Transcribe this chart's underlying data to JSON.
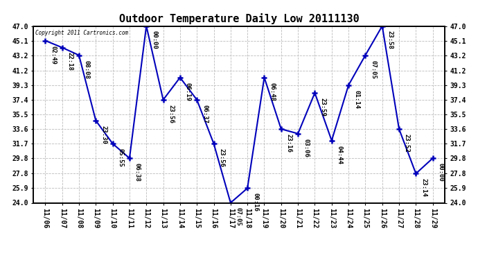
{
  "title": "Outdoor Temperature Daily Low 20111130",
  "copyright": "Copyright 2011 Cartronics.com",
  "x_labels": [
    "11/06",
    "11/07",
    "11/08",
    "11/09",
    "11/10",
    "11/11",
    "11/12",
    "11/13",
    "11/14",
    "11/15",
    "11/16",
    "11/17",
    "11/18",
    "11/19",
    "11/20",
    "11/21",
    "11/22",
    "11/23",
    "11/24",
    "11/25",
    "11/26",
    "11/27",
    "11/28",
    "11/29"
  ],
  "y_values": [
    45.1,
    44.2,
    43.2,
    34.7,
    31.7,
    29.8,
    47.0,
    37.4,
    40.3,
    37.4,
    31.7,
    24.0,
    25.9,
    40.3,
    33.6,
    33.0,
    38.3,
    32.1,
    39.3,
    43.2,
    47.0,
    33.6,
    27.8,
    29.8
  ],
  "time_labels": [
    "02:49",
    "22:18",
    "08:08",
    "23:30",
    "05:55",
    "06:38",
    "00:00",
    "23:56",
    "06:19",
    "06:37",
    "23:56",
    "07:05",
    "00:16",
    "06:48",
    "23:16",
    "03:06",
    "23:59",
    "04:44",
    "01:14",
    "07:05",
    "23:58",
    "23:52",
    "23:14",
    "00:00"
  ],
  "ylim": [
    24.0,
    47.0
  ],
  "yticks": [
    24.0,
    25.9,
    27.8,
    29.8,
    31.7,
    33.6,
    35.5,
    37.4,
    39.3,
    41.2,
    43.2,
    45.1,
    47.0
  ],
  "line_color": "#0000bb",
  "marker_color": "#0000bb",
  "grid_color": "#bbbbbb",
  "background_color": "#ffffff",
  "title_fontsize": 11,
  "tick_fontsize": 7,
  "label_fontsize": 6.5
}
